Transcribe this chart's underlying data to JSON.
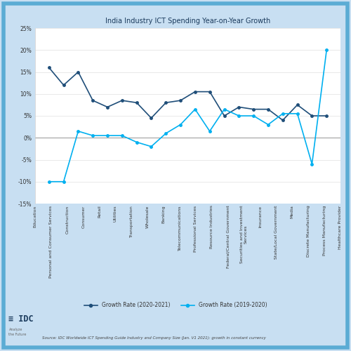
{
  "title": "India Industry ICT Spending Year-on-Year Growth",
  "categories": [
    "Education",
    "Personal and Consumer Services",
    "Construction",
    "Consumer",
    "Retail",
    "Utilities",
    "Transportation",
    "Wholesale",
    "Banking",
    "Telecommunications",
    "Professional Services",
    "Resource Industries",
    "Federal/Central Government",
    "Securities and Investment\nServices",
    "Insurance",
    "State/Local Government",
    "Media",
    "Discrete Manufacturing",
    "Process Manufacturing",
    "Healthcare Provider"
  ],
  "growth_2020_2021": [
    16,
    12,
    15,
    8.5,
    7,
    8.5,
    8,
    4.5,
    8,
    8.5,
    10.5,
    10.5,
    5,
    7,
    6.5,
    6.5,
    4,
    7.5,
    5,
    5
  ],
  "growth_2019_2020": [
    -10,
    -10,
    1.5,
    0.5,
    0.5,
    0.5,
    -1,
    -2,
    1,
    3,
    6.5,
    1.5,
    6.5,
    5,
    5,
    3,
    5.5,
    5.5,
    -6,
    20
  ],
  "line1_color": "#1f4e79",
  "line2_color": "#00b0f0",
  "background_color": "#c8dff2",
  "plot_bg_color": "#ffffff",
  "ylim": [
    -15,
    25
  ],
  "yticks": [
    -15,
    -10,
    -5,
    0,
    5,
    10,
    15,
    20,
    25
  ],
  "source_text": "Source: IDC Worldwide ICT Spending Guide Industry and Company Size (Jan. V1 2021): growth in constant currency",
  "legend_label1": "Growth Rate (2020-2021)",
  "legend_label2": "Growth Rate (2019-2020)",
  "border_color": "#5bacd4",
  "zero_line_color": "#a0a0a0"
}
